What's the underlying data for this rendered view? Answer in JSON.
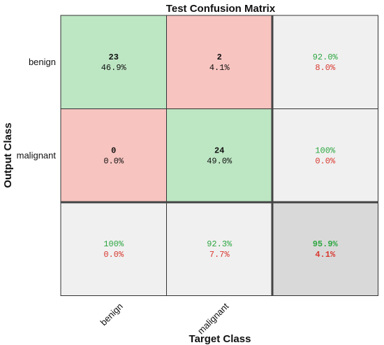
{
  "chart_data": {
    "type": "heatmap",
    "title": "Test Confusion Matrix",
    "xlabel": "Target Class",
    "ylabel": "Output Class",
    "target_classes": [
      "benign",
      "malignant"
    ],
    "output_classes": [
      "benign",
      "malignant"
    ],
    "cells": [
      [
        {
          "count": "23",
          "percent": "46.9%"
        },
        {
          "count": "2",
          "percent": "4.1%"
        }
      ],
      [
        {
          "count": "0",
          "percent": "0.0%"
        },
        {
          "count": "24",
          "percent": "49.0%"
        }
      ]
    ],
    "row_summary": [
      {
        "correct": "92.0%",
        "incorrect": "8.0%"
      },
      {
        "correct": "100%",
        "incorrect": "0.0%"
      }
    ],
    "col_summary": [
      {
        "correct": "100%",
        "incorrect": "0.0%"
      },
      {
        "correct": "92.3%",
        "incorrect": "7.7%"
      }
    ],
    "overall": {
      "correct": "95.9%",
      "incorrect": "4.1%"
    }
  },
  "colors": {
    "correct_cell": "#bde6c3",
    "incorrect_cell": "#f7c4c0",
    "summary_cell": "#f0f0f0",
    "overall_cell": "#d9d9d9",
    "correct_text": "#2ca640",
    "incorrect_text": "#d9382f"
  }
}
